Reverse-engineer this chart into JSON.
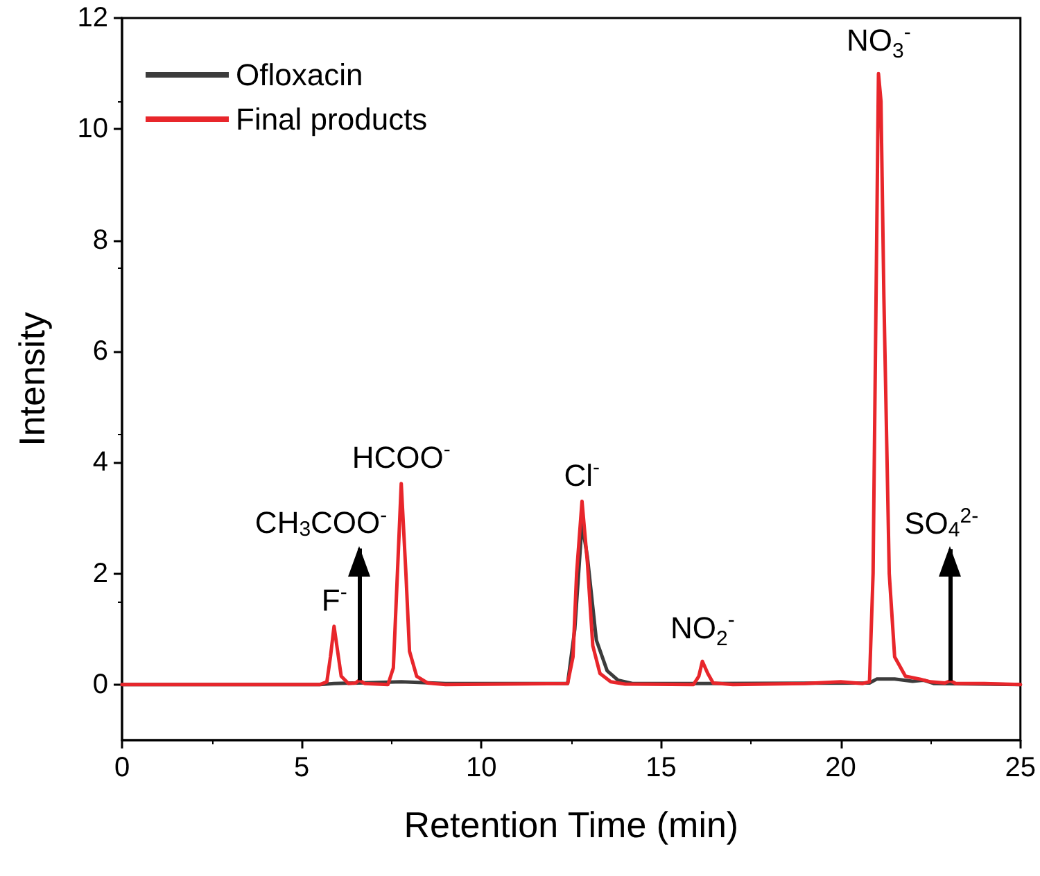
{
  "chart_data": {
    "type": "line",
    "xlabel": "Retention Time (min)",
    "ylabel": "Intensity",
    "xlim": [
      0,
      25
    ],
    "xticks": [
      0,
      5,
      10,
      15,
      20,
      25
    ],
    "ylim": [
      -1,
      12
    ],
    "yticks": [
      0,
      2,
      4,
      6,
      8,
      10,
      12
    ],
    "grid": false,
    "legend": "top left",
    "marker": "none",
    "line_style": "solid",
    "series": [
      {
        "name": "Ofloxacin",
        "color": "#3c3c3c",
        "x": [
          0,
          5.5,
          5.9,
          6.6,
          7.77,
          9,
          12.4,
          12.6,
          12.8,
          12.95,
          13.2,
          13.5,
          13.8,
          14.2,
          16.2,
          20.8,
          21.0,
          21.5,
          22.0,
          22.3,
          22.6,
          25
        ],
        "values": [
          0,
          0,
          0.02,
          0.03,
          0.05,
          0.02,
          0.02,
          1.0,
          2.9,
          2.3,
          0.8,
          0.25,
          0.08,
          0.02,
          0.02,
          0.03,
          0.1,
          0.1,
          0.06,
          0.08,
          0.02,
          0
        ]
      },
      {
        "name": "Final products",
        "color": "#e8262b",
        "x": [
          0,
          5.5,
          5.7,
          5.8,
          5.9,
          6.0,
          6.1,
          6.3,
          6.5,
          6.6,
          6.75,
          7.4,
          7.55,
          7.65,
          7.77,
          7.9,
          8.0,
          8.2,
          8.5,
          9,
          12.4,
          12.55,
          12.65,
          12.8,
          12.95,
          13.1,
          13.3,
          13.6,
          14,
          15.9,
          16.05,
          16.15,
          16.3,
          16.45,
          17,
          19,
          20,
          20.6,
          20.8,
          20.9,
          21.0,
          21.05,
          21.12,
          21.2,
          21.35,
          21.5,
          21.8,
          22.2,
          22.5,
          22.9,
          23.05,
          23.2,
          24,
          25
        ],
        "values": [
          0,
          0,
          0.05,
          0.5,
          1.05,
          0.6,
          0.15,
          0.02,
          0.03,
          0.08,
          0.02,
          0,
          0.3,
          1.8,
          3.62,
          2.0,
          0.6,
          0.15,
          0.03,
          0,
          0.02,
          0.5,
          2.0,
          3.3,
          2.2,
          0.7,
          0.2,
          0.05,
          0.01,
          0,
          0.15,
          0.42,
          0.2,
          0.03,
          0,
          0.02,
          0.05,
          0.02,
          0.05,
          2.0,
          8.0,
          11.0,
          10.5,
          7.0,
          2.0,
          0.5,
          0.15,
          0.1,
          0.05,
          0.03,
          0.07,
          0.02,
          0.02,
          0
        ]
      }
    ],
    "annotations": [
      {
        "text": "F$^{-}$",
        "x": 5.9,
        "y": 1.05
      },
      {
        "text": "CH$_{3}$COO$^{-}$",
        "x": 6.6,
        "y": 0.08
      },
      {
        "text": "HCOO$^{-}$",
        "x": 7.77,
        "y": 3.62
      },
      {
        "text": "Cl$^{-}$",
        "x": 12.8,
        "y": 3.3
      },
      {
        "text": "NO$_{2}$$^{-}$",
        "x": 16.15,
        "y": 0.42
      },
      {
        "text": "NO$_{3}$$^{-}$",
        "x": 21.05,
        "y": 11.0
      },
      {
        "text": "SO$_{4}$$^{2-}$",
        "x": 23.05,
        "y": 0.07
      }
    ]
  }
}
